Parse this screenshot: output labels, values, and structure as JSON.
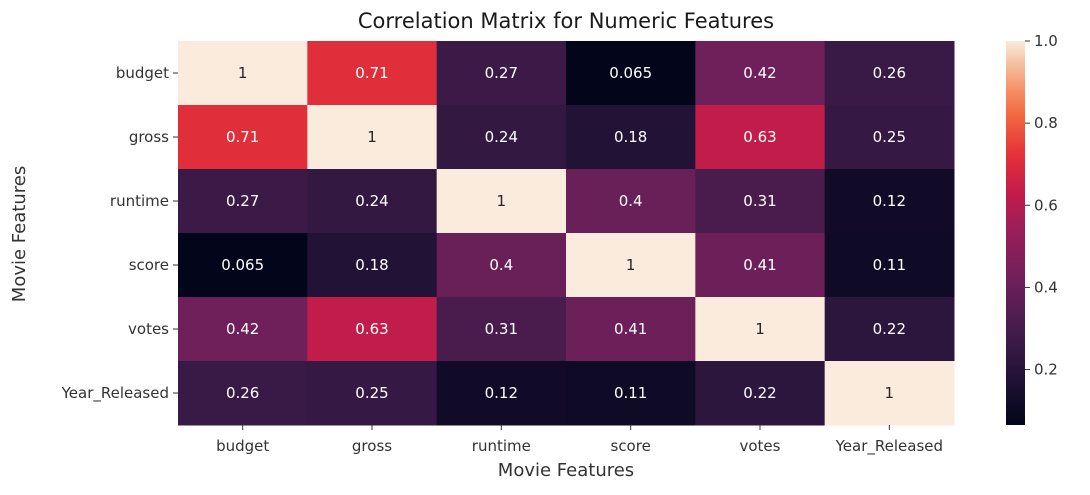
{
  "chart_data": {
    "type": "heatmap",
    "title": "Correlation Matrix for Numeric Features",
    "xlabel": "Movie Features",
    "ylabel": "Movie Features",
    "row_labels": [
      "budget",
      "gross",
      "runtime",
      "score",
      "votes",
      "Year_Released"
    ],
    "col_labels": [
      "budget",
      "gross",
      "runtime",
      "score",
      "votes",
      "Year_Released"
    ],
    "values": [
      [
        1,
        0.71,
        0.27,
        0.065,
        0.42,
        0.26
      ],
      [
        0.71,
        1,
        0.24,
        0.18,
        0.63,
        0.25
      ],
      [
        0.27,
        0.24,
        1,
        0.4,
        0.31,
        0.12
      ],
      [
        0.065,
        0.18,
        0.4,
        1,
        0.41,
        0.11
      ],
      [
        0.42,
        0.63,
        0.31,
        0.41,
        1,
        0.22
      ],
      [
        0.26,
        0.25,
        0.12,
        0.11,
        0.22,
        1
      ]
    ],
    "cell_text": [
      [
        "1",
        "0.71",
        "0.27",
        "0.065",
        "0.42",
        "0.26"
      ],
      [
        "0.71",
        "1",
        "0.24",
        "0.18",
        "0.63",
        "0.25"
      ],
      [
        "0.27",
        "0.24",
        "1",
        "0.4",
        "0.31",
        "0.12"
      ],
      [
        "0.065",
        "0.18",
        "0.4",
        "1",
        "0.41",
        "0.11"
      ],
      [
        "0.42",
        "0.63",
        "0.31",
        "0.41",
        "1",
        "0.22"
      ],
      [
        "0.26",
        "0.25",
        "0.12",
        "0.11",
        "0.22",
        "1"
      ]
    ],
    "colormap": "rocket",
    "vmin": 0.065,
    "vmax": 1.0,
    "colorbar_ticks": [
      0.2,
      0.4,
      0.6,
      0.8,
      1.0
    ],
    "colorbar_tick_labels": [
      "0.2",
      "0.4",
      "0.6",
      "0.8",
      "1.0"
    ],
    "grid": false,
    "colorbar_position": "right"
  }
}
